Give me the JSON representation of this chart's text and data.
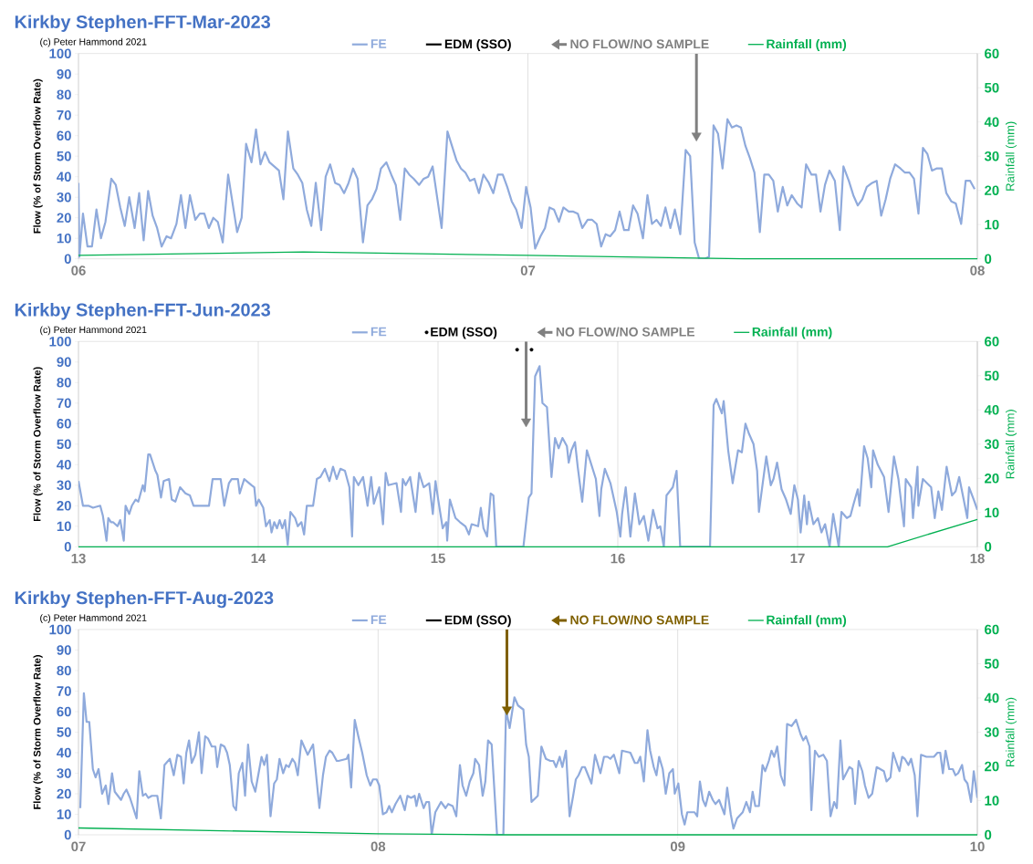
{
  "chart_data": [
    {
      "type": "line",
      "title": "Kirkby Stephen-FFT-Mar-2023",
      "annotations": [
        "(c) Peter Hammond 2021"
      ],
      "ylabel": "Flow (% of Storm Overflow Rate)",
      "y2label": "Rainfall (mm)",
      "xlim": [
        6,
        8
      ],
      "xticks": [
        {
          "value": 6,
          "label": "06"
        },
        {
          "value": 7,
          "label": "07"
        },
        {
          "value": 8,
          "label": "08"
        }
      ],
      "ylim": [
        0,
        100
      ],
      "yticks": [
        0,
        10,
        20,
        30,
        40,
        50,
        60,
        70,
        80,
        90,
        100
      ],
      "y2lim": [
        0,
        60
      ],
      "y2ticks": [
        0,
        10,
        20,
        30,
        40,
        50,
        60
      ],
      "grid": "x",
      "legend": "top",
      "series": [
        {
          "name": "FE",
          "color": "#8faadc",
          "x": [
            6.0,
            6.002,
            6.01,
            6.02,
            6.03,
            6.04,
            6.05,
            6.06,
            6.073,
            6.083,
            6.093,
            6.103,
            6.113,
            6.125,
            6.135,
            6.145,
            6.155,
            6.165,
            6.175,
            6.185,
            6.196,
            6.206,
            6.218,
            6.228,
            6.238,
            6.248,
            6.26,
            6.27,
            6.28,
            6.29,
            6.3,
            6.31,
            6.321,
            6.333,
            6.353,
            6.363,
            6.373,
            6.385,
            6.395,
            6.405,
            6.415,
            6.425,
            6.446,
            6.456,
            6.466,
            6.478,
            6.488,
            6.498,
            6.508,
            6.518,
            6.528,
            6.54,
            6.55,
            6.56,
            6.571,
            6.581,
            6.591,
            6.601,
            6.611,
            6.621,
            6.633,
            6.643,
            6.653,
            6.663,
            6.673,
            6.685,
            6.696,
            6.706,
            6.716,
            6.726,
            6.736,
            6.746,
            6.758,
            6.768,
            6.778,
            6.788,
            6.808,
            6.821,
            6.831,
            6.841,
            6.851,
            6.861,
            6.871,
            6.881,
            6.891,
            6.901,
            6.913,
            6.923,
            6.933,
            6.944,
            6.954,
            6.964,
            6.974,
            6.986,
            6.996,
            7.006,
            7.016,
            7.028,
            7.038,
            7.048,
            7.058,
            7.069,
            7.079,
            7.091,
            7.101,
            7.111,
            7.121,
            7.133,
            7.143,
            7.153,
            7.163,
            7.173,
            7.183,
            7.194,
            7.204,
            7.214,
            7.224,
            7.234,
            7.244,
            7.256,
            7.266,
            7.276,
            7.286,
            7.296,
            7.306,
            7.317,
            7.327,
            7.339,
            7.351,
            7.361,
            7.371,
            7.381,
            7.393,
            7.403,
            7.413,
            7.423,
            7.433,
            7.444,
            7.454,
            7.464,
            7.474,
            7.484,
            7.494,
            7.504,
            7.516,
            7.526,
            7.536,
            7.546,
            7.556,
            7.567,
            7.577,
            7.587,
            7.599,
            7.609,
            7.619,
            7.631,
            7.641,
            7.651,
            7.661,
            7.671,
            7.683,
            7.694,
            7.702,
            7.714,
            7.724,
            7.734,
            7.744,
            7.754,
            7.766,
            7.776,
            7.786,
            7.796,
            7.806,
            7.817,
            7.829,
            7.839,
            7.849,
            7.859,
            7.869,
            7.879,
            7.889,
            7.899,
            7.909,
            7.921,
            7.931,
            7.942,
            7.952,
            7.964,
            7.974,
            7.984,
            7.994
          ],
          "values": [
            37,
            1,
            22,
            6,
            6,
            24,
            10,
            18,
            39,
            36,
            25,
            16,
            30,
            15,
            32,
            9,
            33,
            21,
            15,
            6,
            11,
            10,
            17,
            31,
            15,
            31,
            19,
            22,
            22,
            15,
            20,
            18,
            8,
            41,
            13,
            20,
            56,
            47,
            63,
            46,
            52,
            47,
            43,
            29,
            62,
            44,
            41,
            37,
            24,
            16,
            37,
            14,
            40,
            46,
            37,
            36,
            32,
            37,
            44,
            39,
            8,
            26,
            29,
            34,
            44,
            47,
            41,
            36,
            19,
            44,
            41,
            39,
            36,
            39,
            40,
            45,
            15,
            62,
            55,
            48,
            44,
            42,
            38,
            39,
            32,
            41,
            37,
            32,
            41,
            41,
            35,
            28,
            24,
            15,
            35,
            25,
            5,
            11,
            15,
            25,
            24,
            18,
            25,
            23,
            23,
            22,
            15,
            19,
            19,
            17,
            6,
            12,
            11,
            14,
            23,
            14,
            14,
            26,
            22,
            10,
            31,
            17,
            19,
            16,
            25,
            15,
            24,
            12,
            53,
            50,
            8,
            0,
            0,
            1,
            65,
            61,
            44,
            68,
            64,
            65,
            64,
            55,
            49,
            42,
            13,
            41,
            41,
            38,
            23,
            35,
            26,
            31,
            27,
            25,
            46,
            41,
            41,
            23,
            36,
            43,
            38,
            14,
            45,
            38,
            31,
            26,
            29,
            35,
            37,
            38,
            21,
            29,
            39,
            46,
            44,
            42,
            42,
            39,
            22,
            54,
            51,
            43,
            44,
            44,
            32,
            28,
            27,
            17,
            38,
            38,
            34
          ]
        },
        {
          "name": "EDM (SSO)",
          "color": "#000000"
        },
        {
          "name": "NO FLOW/NO SAMPLE",
          "marker": "triangle",
          "color": "#808080",
          "x": [
            7.375,
            7.375
          ],
          "values": [
            100,
            60
          ]
        },
        {
          "name": "Rainfall (mm)",
          "axis": "y2",
          "color": "#00b050",
          "x": [
            6,
            6.5,
            7,
            7.48,
            8
          ],
          "values": [
            1,
            2,
            1,
            0,
            0
          ]
        }
      ]
    },
    {
      "type": "line",
      "title": "Kirkby Stephen-FFT-Jun-2023",
      "annotations": [
        "(c) Peter Hammond 2021"
      ],
      "ylabel": "Flow (% of Storm Overflow Rate)",
      "y2label": "Rainfall (mm)",
      "xlim": [
        13,
        18
      ],
      "xticks": [
        {
          "value": 13,
          "label": "13"
        },
        {
          "value": 14,
          "label": "14"
        },
        {
          "value": 15,
          "label": "15"
        },
        {
          "value": 16,
          "label": "16"
        },
        {
          "value": 17,
          "label": "17"
        },
        {
          "value": 18,
          "label": "18"
        }
      ],
      "ylim": [
        0,
        100
      ],
      "yticks": [
        0,
        10,
        20,
        30,
        40,
        50,
        60,
        70,
        80,
        90,
        100
      ],
      "y2lim": [
        0,
        60
      ],
      "y2ticks": [
        0,
        10,
        20,
        30,
        40,
        50,
        60
      ],
      "grid": "x",
      "legend": "top",
      "series": [
        {
          "name": "FE",
          "color": "#8faadc",
          "x": [
            13.0,
            13.025,
            13.055,
            13.081,
            13.121,
            13.136,
            13.156,
            13.166,
            13.181,
            13.192,
            13.217,
            13.232,
            13.252,
            13.262,
            13.282,
            13.297,
            13.318,
            13.333,
            13.358,
            13.368,
            13.388,
            13.398,
            13.428,
            13.439,
            13.459,
            13.474,
            13.504,
            13.519,
            13.539,
            13.565,
            13.595,
            13.62,
            13.64,
            13.726,
            13.746,
            13.791,
            13.811,
            13.837,
            13.852,
            13.887,
            13.897,
            13.922,
            13.963,
            13.978,
            13.988,
            14.003,
            14.028,
            14.043,
            14.064,
            14.074,
            14.089,
            14.104,
            14.119,
            14.134,
            14.149,
            14.164,
            14.179,
            14.205,
            14.22,
            14.24,
            14.255,
            14.27,
            14.305,
            14.326,
            14.346,
            14.371,
            14.396,
            14.416,
            14.436,
            14.457,
            14.482,
            14.507,
            14.522,
            14.532,
            14.557,
            14.583,
            14.608,
            14.628,
            14.643,
            14.673,
            14.694,
            14.709,
            14.724,
            14.769,
            14.794,
            14.804,
            14.82,
            14.845,
            14.875,
            14.895,
            14.92,
            14.951,
            14.971,
            14.986,
            15.001,
            15.026,
            15.046,
            15.051,
            15.066,
            15.097,
            15.122,
            15.152,
            15.172,
            15.187,
            15.223,
            15.238,
            15.253,
            15.273,
            15.293,
            15.308,
            15.324,
            15.475,
            15.505,
            15.52,
            15.54,
            15.565,
            15.581,
            15.606,
            15.631,
            15.651,
            15.671,
            15.692,
            15.717,
            15.727,
            15.742,
            15.762,
            15.777,
            15.802,
            15.828,
            15.853,
            15.878,
            15.898,
            15.908,
            15.928,
            15.959,
            15.994,
            16.014,
            16.024,
            16.044,
            16.07,
            16.095,
            16.12,
            16.145,
            16.17,
            16.196,
            16.221,
            16.236,
            16.256,
            16.271,
            16.306,
            16.327,
            16.347,
            16.513,
            16.533,
            16.548,
            16.579,
            16.589,
            16.614,
            16.639,
            16.669,
            16.69,
            16.71,
            16.73,
            16.755,
            16.775,
            16.785,
            16.826,
            16.851,
            16.866,
            16.886,
            16.911,
            16.936,
            16.962,
            16.982,
            17.002,
            17.017,
            17.037,
            17.052,
            17.062,
            17.088,
            17.113,
            17.133,
            17.153,
            17.178,
            17.198,
            17.229,
            17.244,
            17.274,
            17.294,
            17.309,
            17.335,
            17.345,
            17.37,
            17.39,
            17.41,
            17.42,
            17.446,
            17.481,
            17.506,
            17.536,
            17.561,
            17.592,
            17.602,
            17.632,
            17.642,
            17.667,
            17.672,
            17.697,
            17.743,
            17.763,
            17.783,
            17.803,
            17.829,
            17.859,
            17.879,
            17.899,
            17.924,
            17.944,
            17.954,
            17.98,
            18.0
          ],
          "values": [
            32,
            20,
            20,
            19,
            20,
            15,
            3,
            14,
            12,
            12,
            10,
            13,
            3,
            20,
            16,
            20,
            23,
            22,
            30,
            27,
            45,
            45,
            37,
            35,
            24,
            32,
            33,
            23,
            22,
            29,
            26,
            25,
            20,
            20,
            33,
            33,
            20,
            31,
            33,
            33,
            26,
            33,
            30,
            29,
            20,
            23,
            19,
            10,
            13,
            7,
            12,
            9,
            13,
            9,
            13,
            1,
            17,
            14,
            10,
            12,
            6,
            20,
            20,
            33,
            34,
            38,
            32,
            39,
            33,
            38,
            37,
            29,
            5,
            34,
            30,
            34,
            20,
            34,
            21,
            29,
            11,
            36,
            30,
            31,
            17,
            33,
            30,
            34,
            17,
            36,
            29,
            31,
            16,
            32,
            23,
            9,
            12,
            3,
            23,
            14,
            12,
            10,
            6,
            11,
            10,
            19,
            9,
            5,
            26,
            25,
            0,
            0,
            24,
            26,
            83,
            88,
            70,
            68,
            34,
            53,
            48,
            53,
            49,
            41,
            47,
            51,
            39,
            22,
            47,
            40,
            33,
            15,
            28,
            38,
            31,
            17,
            5,
            16,
            29,
            5,
            26,
            11,
            15,
            3,
            18,
            9,
            10,
            0,
            25,
            29,
            37,
            0,
            0,
            69,
            72,
            65,
            71,
            47,
            31,
            47,
            46,
            60,
            55,
            50,
            37,
            17,
            44,
            30,
            33,
            41,
            28,
            23,
            16,
            30,
            23,
            7,
            25,
            11,
            22,
            11,
            14,
            7,
            11,
            0,
            16,
            0,
            17,
            14,
            15,
            20,
            28,
            20,
            49,
            43,
            29,
            47,
            40,
            34,
            17,
            44,
            33,
            10,
            33,
            29,
            14,
            39,
            20,
            33,
            29,
            14,
            27,
            18,
            39,
            25,
            27,
            34,
            23,
            14,
            29,
            23,
            18
          ]
        },
        {
          "name": "EDM (SSO)",
          "type": "scatter",
          "marker": "circle",
          "color": "#000000",
          "x": [
            15.44,
            15.52
          ],
          "values": [
            96,
            96
          ]
        },
        {
          "name": "NO FLOW/NO SAMPLE",
          "marker": "triangle",
          "color": "#808080",
          "x": [
            15.49,
            15.49
          ],
          "values": [
            100,
            61
          ]
        },
        {
          "name": "Rainfall (mm)",
          "axis": "y2",
          "color": "#00b050",
          "x": [
            13,
            17.5,
            18
          ],
          "values": [
            0,
            0,
            8
          ]
        }
      ]
    },
    {
      "type": "line",
      "title": "Kirkby Stephen-FFT-Aug-2023",
      "annotations": [
        "(c) Peter Hammond 2021"
      ],
      "ylabel": "Flow (% of Storm Overflow Rate)",
      "y2label": "Rainfall (mm)",
      "xlim": [
        7,
        10
      ],
      "xticks": [
        {
          "value": 7,
          "label": "07"
        },
        {
          "value": 8,
          "label": "08"
        },
        {
          "value": 9,
          "label": "09"
        },
        {
          "value": 10,
          "label": "10"
        }
      ],
      "ylim": [
        0,
        100
      ],
      "yticks": [
        0,
        10,
        20,
        30,
        40,
        50,
        60,
        70,
        80,
        90,
        100
      ],
      "y2lim": [
        0,
        60
      ],
      "y2ticks": [
        0,
        10,
        20,
        30,
        40,
        50,
        60
      ],
      "grid": "x",
      "legend": "top",
      "series": [
        {
          "name": "FE",
          "color": "#8faadc",
          "x": [
            7.006,
            7.018,
            7.027,
            7.036,
            7.048,
            7.057,
            7.067,
            7.079,
            7.091,
            7.1,
            7.112,
            7.121,
            7.142,
            7.151,
            7.16,
            7.172,
            7.194,
            7.203,
            7.215,
            7.224,
            7.233,
            7.245,
            7.263,
            7.275,
            7.287,
            7.305,
            7.318,
            7.33,
            7.342,
            7.351,
            7.36,
            7.369,
            7.378,
            7.39,
            7.402,
            7.411,
            7.423,
            7.432,
            7.445,
            7.457,
            7.463,
            7.475,
            7.487,
            7.496,
            7.505,
            7.517,
            7.526,
            7.535,
            7.547,
            7.556,
            7.566,
            7.578,
            7.59,
            7.611,
            7.62,
            7.629,
            7.641,
            7.653,
            7.662,
            7.671,
            7.683,
            7.693,
            7.702,
            7.714,
            7.723,
            7.732,
            7.744,
            7.759,
            7.765,
            7.783,
            7.804,
            7.816,
            7.826,
            7.838,
            7.847,
            7.862,
            7.868,
            7.895,
            7.901,
            7.91,
            7.922,
            7.934,
            7.947,
            7.962,
            7.974,
            7.983,
            7.995,
            8.004,
            8.016,
            8.028,
            8.037,
            8.046,
            8.058,
            8.074,
            8.089,
            8.098,
            8.11,
            8.122,
            8.128,
            8.137,
            8.152,
            8.161,
            8.17,
            8.179,
            8.191,
            8.21,
            8.225,
            8.234,
            8.249,
            8.261,
            8.273,
            8.282,
            8.294,
            8.306,
            8.318,
            8.324,
            8.337,
            8.349,
            8.358,
            8.367,
            8.379,
            8.397,
            8.418,
            8.427,
            8.439,
            8.455,
            8.467,
            8.485,
            8.494,
            8.503,
            8.512,
            8.533,
            8.545,
            8.56,
            8.575,
            8.585,
            8.594,
            8.606,
            8.615,
            8.627,
            8.639,
            8.651,
            8.66,
            8.669,
            8.681,
            8.69,
            8.712,
            8.724,
            8.742,
            8.754,
            8.766,
            8.775,
            8.787,
            8.805,
            8.814,
            8.842,
            8.857,
            8.866,
            8.875,
            8.887,
            8.899,
            8.908,
            8.92,
            8.929,
            8.938,
            8.95,
            8.96,
            8.972,
            8.984,
            8.99,
            9.002,
            9.014,
            9.023,
            9.032,
            9.047,
            9.056,
            9.065,
            9.074,
            9.084,
            9.093,
            9.105,
            9.117,
            9.126,
            9.138,
            9.156,
            9.165,
            9.177,
            9.186,
            9.198,
            9.217,
            9.229,
            9.241,
            9.25,
            9.259,
            9.271,
            9.283,
            9.292,
            9.304,
            9.313,
            9.322,
            9.332,
            9.344,
            9.356,
            9.365,
            9.38,
            9.395,
            9.41,
            9.419,
            9.428,
            9.44,
            9.446,
            9.458,
            9.471,
            9.486,
            9.498,
            9.51,
            9.522,
            9.531,
            9.543,
            9.552,
            9.573,
            9.583,
            9.592,
            9.604,
            9.616,
            9.625,
            9.637,
            9.649,
            9.664,
            9.688,
            9.697,
            9.71,
            9.719,
            9.728,
            9.74,
            9.749,
            9.758,
            9.77,
            9.779,
            9.791,
            9.8,
            9.812,
            9.83,
            9.855,
            9.867,
            9.876,
            9.885,
            9.894,
            9.906,
            9.918,
            9.927,
            9.936,
            9.949,
            9.957,
            9.967,
            9.979,
            9.988,
            10.0
          ],
          "values": [
            13,
            69,
            55,
            55,
            32,
            28,
            32,
            20,
            24,
            15,
            30,
            21,
            17,
            20,
            22,
            18,
            8,
            31,
            19,
            20,
            18,
            19,
            19,
            8,
            34,
            37,
            29,
            39,
            38,
            25,
            40,
            46,
            35,
            39,
            50,
            30,
            48,
            47,
            43,
            43,
            33,
            44,
            43,
            40,
            34,
            14,
            12,
            30,
            35,
            19,
            44,
            26,
            21,
            38,
            34,
            39,
            9,
            25,
            27,
            37,
            30,
            34,
            33,
            37,
            35,
            29,
            46,
            41,
            39,
            44,
            13,
            29,
            38,
            41,
            40,
            36,
            36,
            37,
            39,
            23,
            56,
            48,
            40,
            29,
            24,
            27,
            27,
            24,
            10,
            11,
            14,
            11,
            15,
            19,
            12,
            19,
            18,
            19,
            14,
            20,
            13,
            16,
            16,
            0,
            11,
            16,
            13,
            15,
            14,
            9,
            34,
            24,
            19,
            26,
            30,
            37,
            34,
            19,
            26,
            46,
            44,
            0,
            0,
            61,
            52,
            67,
            63,
            61,
            44,
            38,
            16,
            19,
            43,
            37,
            36,
            36,
            33,
            38,
            33,
            41,
            9,
            19,
            27,
            29,
            33,
            33,
            25,
            39,
            30,
            38,
            38,
            37,
            39,
            30,
            41,
            40,
            35,
            35,
            38,
            26,
            51,
            41,
            33,
            29,
            38,
            32,
            20,
            30,
            32,
            20,
            25,
            10,
            5,
            11,
            11,
            11,
            9,
            26,
            17,
            14,
            21,
            17,
            15,
            17,
            10,
            23,
            10,
            3,
            8,
            11,
            16,
            11,
            21,
            14,
            14,
            34,
            31,
            36,
            41,
            38,
            43,
            29,
            24,
            54,
            53,
            56,
            49,
            46,
            48,
            43,
            12,
            41,
            38,
            39,
            36,
            9,
            16,
            13,
            46,
            27,
            33,
            32,
            15,
            36,
            31,
            24,
            18,
            20,
            33,
            31,
            26,
            28,
            40,
            36,
            31,
            38,
            37,
            34,
            37,
            29,
            9,
            39,
            38,
            38,
            40,
            40,
            30,
            41,
            32,
            32,
            29,
            30,
            34,
            27,
            25,
            16,
            31,
            18
          ]
        },
        {
          "name": "EDM (SSO)",
          "color": "#000000"
        },
        {
          "name": "NO FLOW/NO SAMPLE",
          "marker": "triangle",
          "color": "#7f6000",
          "x": [
            8.43,
            8.43
          ],
          "values": [
            100,
            61
          ]
        },
        {
          "name": "Rainfall (mm)",
          "axis": "y2",
          "color": "#00b050",
          "x": [
            7,
            8,
            8.4,
            10
          ],
          "values": [
            2,
            0.3,
            0,
            0
          ]
        }
      ]
    }
  ]
}
